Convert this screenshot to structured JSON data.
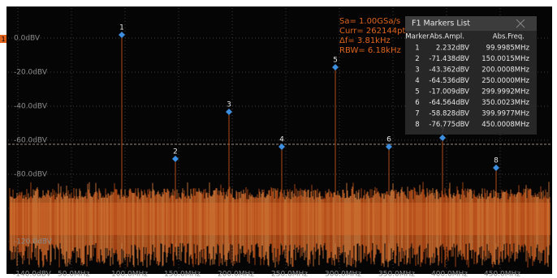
{
  "y_axis_labels": [
    "0.0dBV",
    "-20.0dBV",
    "-40.0dBV",
    "-60.0dBV",
    "-80.0dBV",
    "-120.0dBV"
  ],
  "x_axis_labels": [
    "-140.0dBV",
    "50.0MHz",
    "100.0MHz",
    "150.0MHz",
    "200.0MHz",
    "250.0MHz",
    "300.0MHz",
    "350.0MHz",
    "400.0MHz",
    "450.0MHz"
  ],
  "info": [
    "Sa= 1.00GSa/s",
    "Curr= 262144pts",
    "Δf= 3.81kHz",
    "RBW= 6.18kHz"
  ],
  "channel_tag": "1",
  "markers_table": {
    "title": "F1 Markers List",
    "columns": [
      "Marker",
      "Abs.Ampl.",
      "Abs.Freq."
    ],
    "rows": [
      [
        "1",
        "2.232dBV",
        "99.9985MHz"
      ],
      [
        "2",
        "-71.438dBV",
        "150.0015MHz"
      ],
      [
        "3",
        "-43.362dBV",
        "200.0008MHz"
      ],
      [
        "4",
        "-64.536dBV",
        "250.0000MHz"
      ],
      [
        "5",
        "-17.009dBV",
        "299.9992MHz"
      ],
      [
        "6",
        "-64.564dBV",
        "350.0023MHz"
      ],
      [
        "7",
        "-58.828dBV",
        "399.9977MHz"
      ],
      [
        "8",
        "-76.775dBV",
        "450.0008MHz"
      ]
    ]
  }
}
